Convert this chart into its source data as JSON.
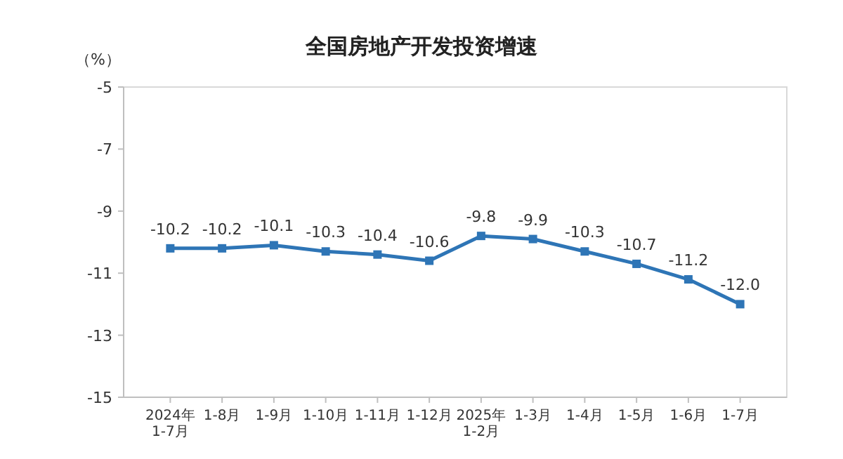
{
  "chart_data": {
    "type": "line",
    "title": "全国房地产开发投资增速",
    "ylabel": "（%）",
    "categories": [
      "2024年\n1-7月",
      "1-8月",
      "1-9月",
      "1-10月",
      "1-11月",
      "1-12月",
      "2025年\n1-2月",
      "1-3月",
      "1-4月",
      "1-5月",
      "1-6月",
      "1-7月"
    ],
    "series": [
      {
        "color": "#2e75b6",
        "values": [
          -10.2,
          -10.2,
          -10.1,
          -10.3,
          -10.4,
          -10.6,
          -9.8,
          -9.9,
          -10.3,
          -10.7,
          -11.2,
          -12.0
        ],
        "value_labels": [
          "-10.2",
          "-10.2",
          "-10.1",
          "-10.3",
          "-10.4",
          "-10.6",
          "-9.8",
          "-9.9",
          "-10.3",
          "-10.7",
          "-11.2",
          "-12.0"
        ]
      }
    ],
    "ylim": [
      -15,
      -5
    ],
    "yticks": [
      -15,
      -13,
      -11,
      -9,
      -7,
      -5
    ],
    "marker": "square",
    "line_style": "solid"
  }
}
